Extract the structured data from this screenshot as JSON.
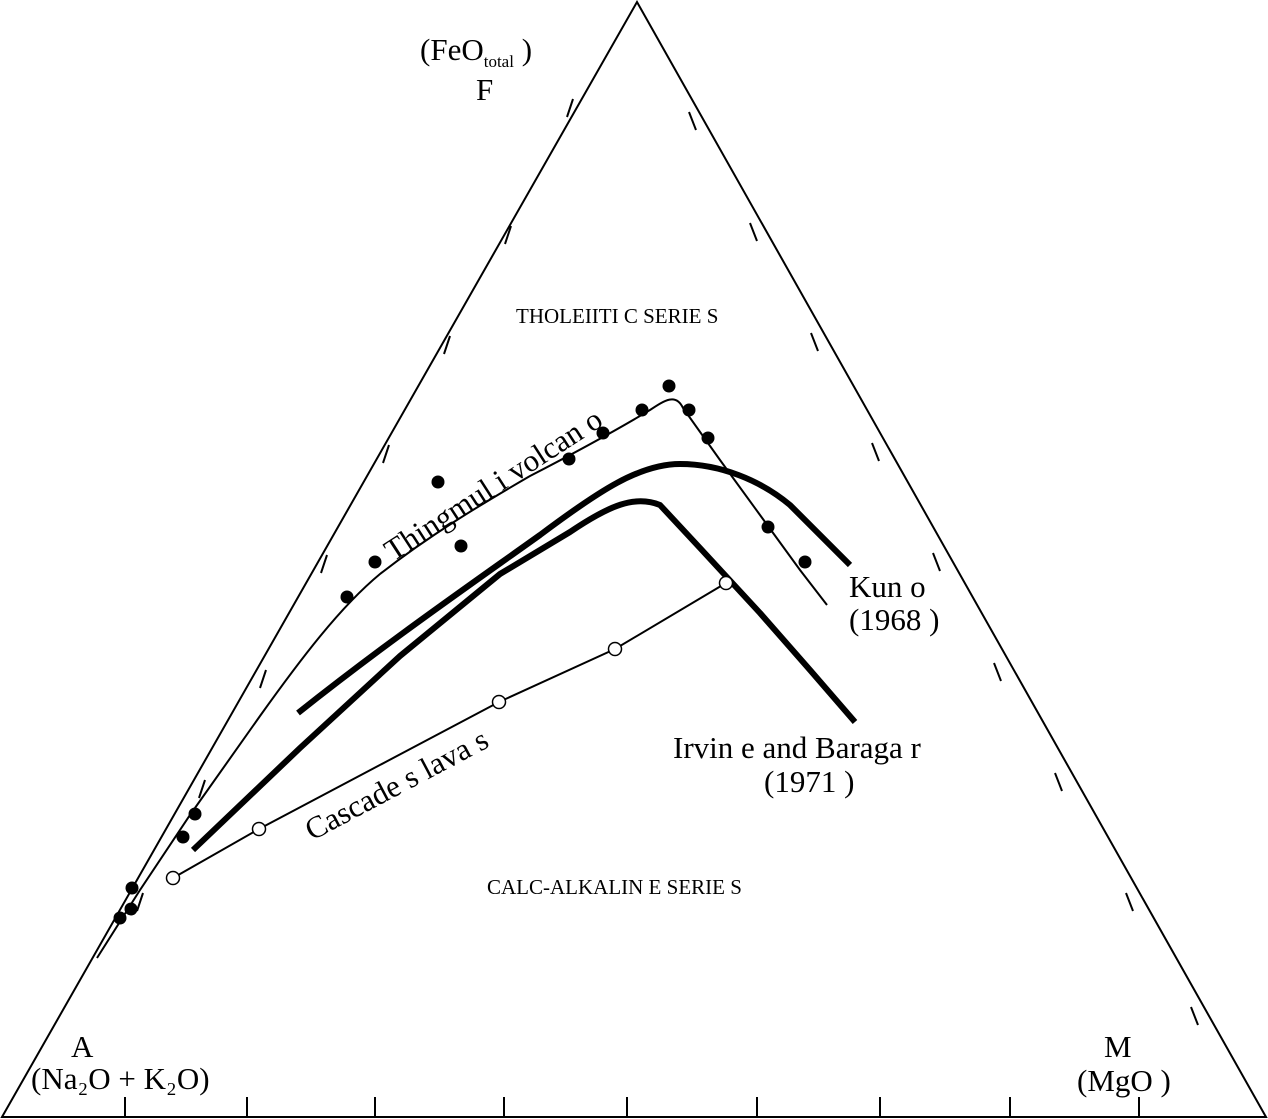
{
  "diagram": {
    "type": "ternary-AFM",
    "vertices": {
      "F": {
        "letter": "F",
        "oxide_open": "(FeO",
        "oxide_sub": "total",
        "oxide_close": " )"
      },
      "A": {
        "letter": "A",
        "oxide": "(Na₂O + K₂O)"
      },
      "M": {
        "letter": "M",
        "oxide": "(MgO )"
      }
    },
    "fields": {
      "tholeiitic": "THOLEIITI C SERIE S",
      "calc_alkaline": "CALC-ALKALIN  E SERIE S"
    },
    "curves": {
      "thingmuli": {
        "label": "Thingmul i volcan o"
      },
      "cascades": {
        "label": "Cascade s lava s"
      },
      "kuno": {
        "label_line1": "Kun o",
        "label_line2": "(1968 )"
      },
      "irvine_baragar": {
        "label_line1": "Irvin e and Baraga r",
        "label_line2": "(1971 )"
      }
    }
  }
}
